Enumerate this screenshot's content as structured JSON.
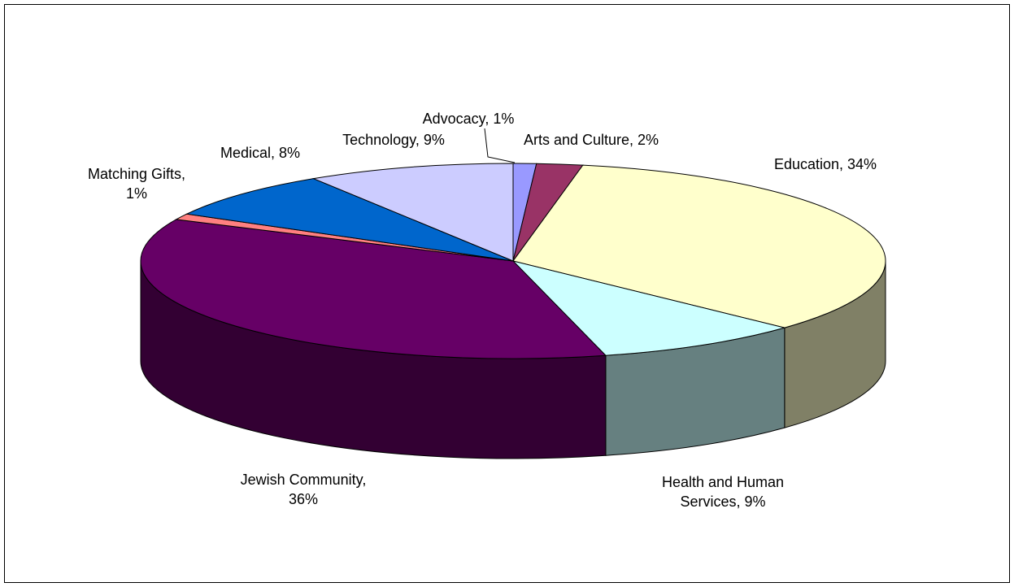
{
  "chart_data": {
    "type": "pie",
    "style": "3d",
    "title": "",
    "start_angle_deg": 90,
    "direction": "clockwise",
    "slices": [
      {
        "name": "Advocacy",
        "value": 1,
        "label": [
          "Advocacy, 1%"
        ],
        "color": "#9999FF"
      },
      {
        "name": "Arts and Culture",
        "value": 2,
        "label": [
          "Arts and Culture,  2%"
        ],
        "color": "#993366"
      },
      {
        "name": "Education",
        "value": 34,
        "label": [
          "Education, 34%"
        ],
        "color": "#FFFFCC"
      },
      {
        "name": "Health and Human Services",
        "value": 9,
        "label": [
          "Health and Human",
          "Services,  9%"
        ],
        "color": "#CCFFFF"
      },
      {
        "name": "Jewish Community",
        "value": 36,
        "label": [
          "Jewish Community,",
          "36%"
        ],
        "color": "#660066"
      },
      {
        "name": "Matching Gifts",
        "value": 1,
        "label": [
          "Matching Gifts,",
          "1%"
        ],
        "color": "#FF8080"
      },
      {
        "name": "Medical",
        "value": 8,
        "label": [
          "Medical,  8%"
        ],
        "color": "#0066CC"
      },
      {
        "name": "Technology",
        "value": 9,
        "label": [
          "Technology, 9%"
        ],
        "color": "#CCCCFF"
      }
    ]
  }
}
